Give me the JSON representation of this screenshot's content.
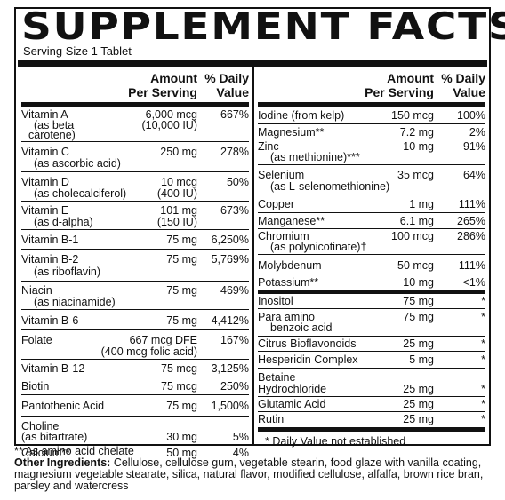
{
  "title": "SUPPLEMENT FACTS",
  "serving_size": "Serving Size 1 Tablet",
  "headers": {
    "amount_l1": "Amount",
    "amount_l2": "Per Serving",
    "dv_l1": "% Daily",
    "dv_l2": "Value"
  },
  "left_rows": [
    {
      "name": "Vitamin A",
      "amount": "6,000 mcg",
      "dv": "667%",
      "sub": "(as beta",
      "sub2": "carotene)",
      "subamt": "(10,000 IU)"
    },
    {
      "name": "Vitamin C",
      "amount": "250 mg",
      "dv": "278%",
      "sub": "(as ascorbic acid)"
    },
    {
      "name": "Vitamin D",
      "amount": "10 mcg",
      "dv": "50%",
      "sub": "(as cholecalciferol)",
      "subamt": "(400 IU)"
    },
    {
      "name": "Vitamin E",
      "amount": "101 mg",
      "dv": "673%",
      "sub": "(as d-alpha)",
      "subamt": "(150 IU)"
    },
    {
      "name": "Vitamin B-1",
      "amount": "75 mg",
      "dv": "6,250%"
    },
    {
      "name": "Vitamin B-2",
      "amount": "75 mg",
      "dv": "5,769%",
      "sub": "(as riboflavin)"
    },
    {
      "name": "Niacin",
      "amount": "75 mg",
      "dv": "469%",
      "sub": "(as niacinamide)"
    },
    {
      "name": "Vitamin B-6",
      "amount": "75 mg",
      "dv": "4,412%"
    },
    {
      "name": "Folate",
      "amount": "667 mcg DFE",
      "dv": "167%",
      "subamt": "(400 mcg folic acid)"
    },
    {
      "name": "Vitamin B-12",
      "amount": "75 mcg",
      "dv": "3,125%"
    },
    {
      "name": "Biotin",
      "amount": "75 mcg",
      "dv": "250%"
    },
    {
      "name": "Pantothenic Acid",
      "amount": "75 mg",
      "dv": "1,500%"
    },
    {
      "name": "Choline",
      "amount": "30 mg",
      "dv": "5%",
      "sub": "(as bitartrate)"
    },
    {
      "name": "Calcium**",
      "amount": "50 mg",
      "dv": "4%"
    }
  ],
  "right_rows": [
    {
      "name": "Iodine (from kelp)",
      "amount": "150 mcg",
      "dv": "100%"
    },
    {
      "name": "Magnesium**",
      "amount": "7.2 mg",
      "dv": "2%"
    },
    {
      "name": "Zinc",
      "amount": "10 mg",
      "dv": "91%",
      "sub": "(as methionine)***"
    },
    {
      "name": "Selenium",
      "amount": "35 mcg",
      "dv": "64%",
      "sub": "(as L-selenomethionine)"
    },
    {
      "name": "Copper",
      "amount": "1 mg",
      "dv": "111%"
    },
    {
      "name": "Manganese**",
      "amount": "6.1 mg",
      "dv": "265%"
    },
    {
      "name": "Chromium",
      "amount": "100 mcg",
      "dv": "286%",
      "sub": "(as polynicotinate)†"
    },
    {
      "name": "Molybdenum",
      "amount": "50 mcg",
      "dv": "111%"
    },
    {
      "name": "Potassium**",
      "amount": "10 mg",
      "dv": "<1%"
    },
    {
      "name": "Inositol",
      "amount": "75 mg",
      "dv": "*"
    },
    {
      "name": "Para amino",
      "amount": "75 mg",
      "dv": "*",
      "sub": "benzoic acid"
    },
    {
      "name": "Citrus Bioflavonoids",
      "amount": "25 mg",
      "dv": "*"
    },
    {
      "name": "Hesperidin Complex",
      "amount": "5 mg",
      "dv": "*"
    },
    {
      "name": "Betaine",
      "name2": "Hydrochloride",
      "amount": "25 mg",
      "dv": "*"
    },
    {
      "name": "Glutamic Acid",
      "amount": "25 mg",
      "dv": "*"
    },
    {
      "name": "Rutin",
      "amount": "25 mg",
      "dv": "*"
    }
  ],
  "dv_footnote": "* Daily Value not established",
  "chelate_note": "** As amino acid chelate",
  "other_label": "Other Ingredients:",
  "other_text": " Cellulose, cellulose gum, vegetable stearin, food glaze with vanilla coating, magnesium vegetable stearate, silica, natural flavor, modified cellulose, alfalfa, brown rice bran, parsley and watercress"
}
